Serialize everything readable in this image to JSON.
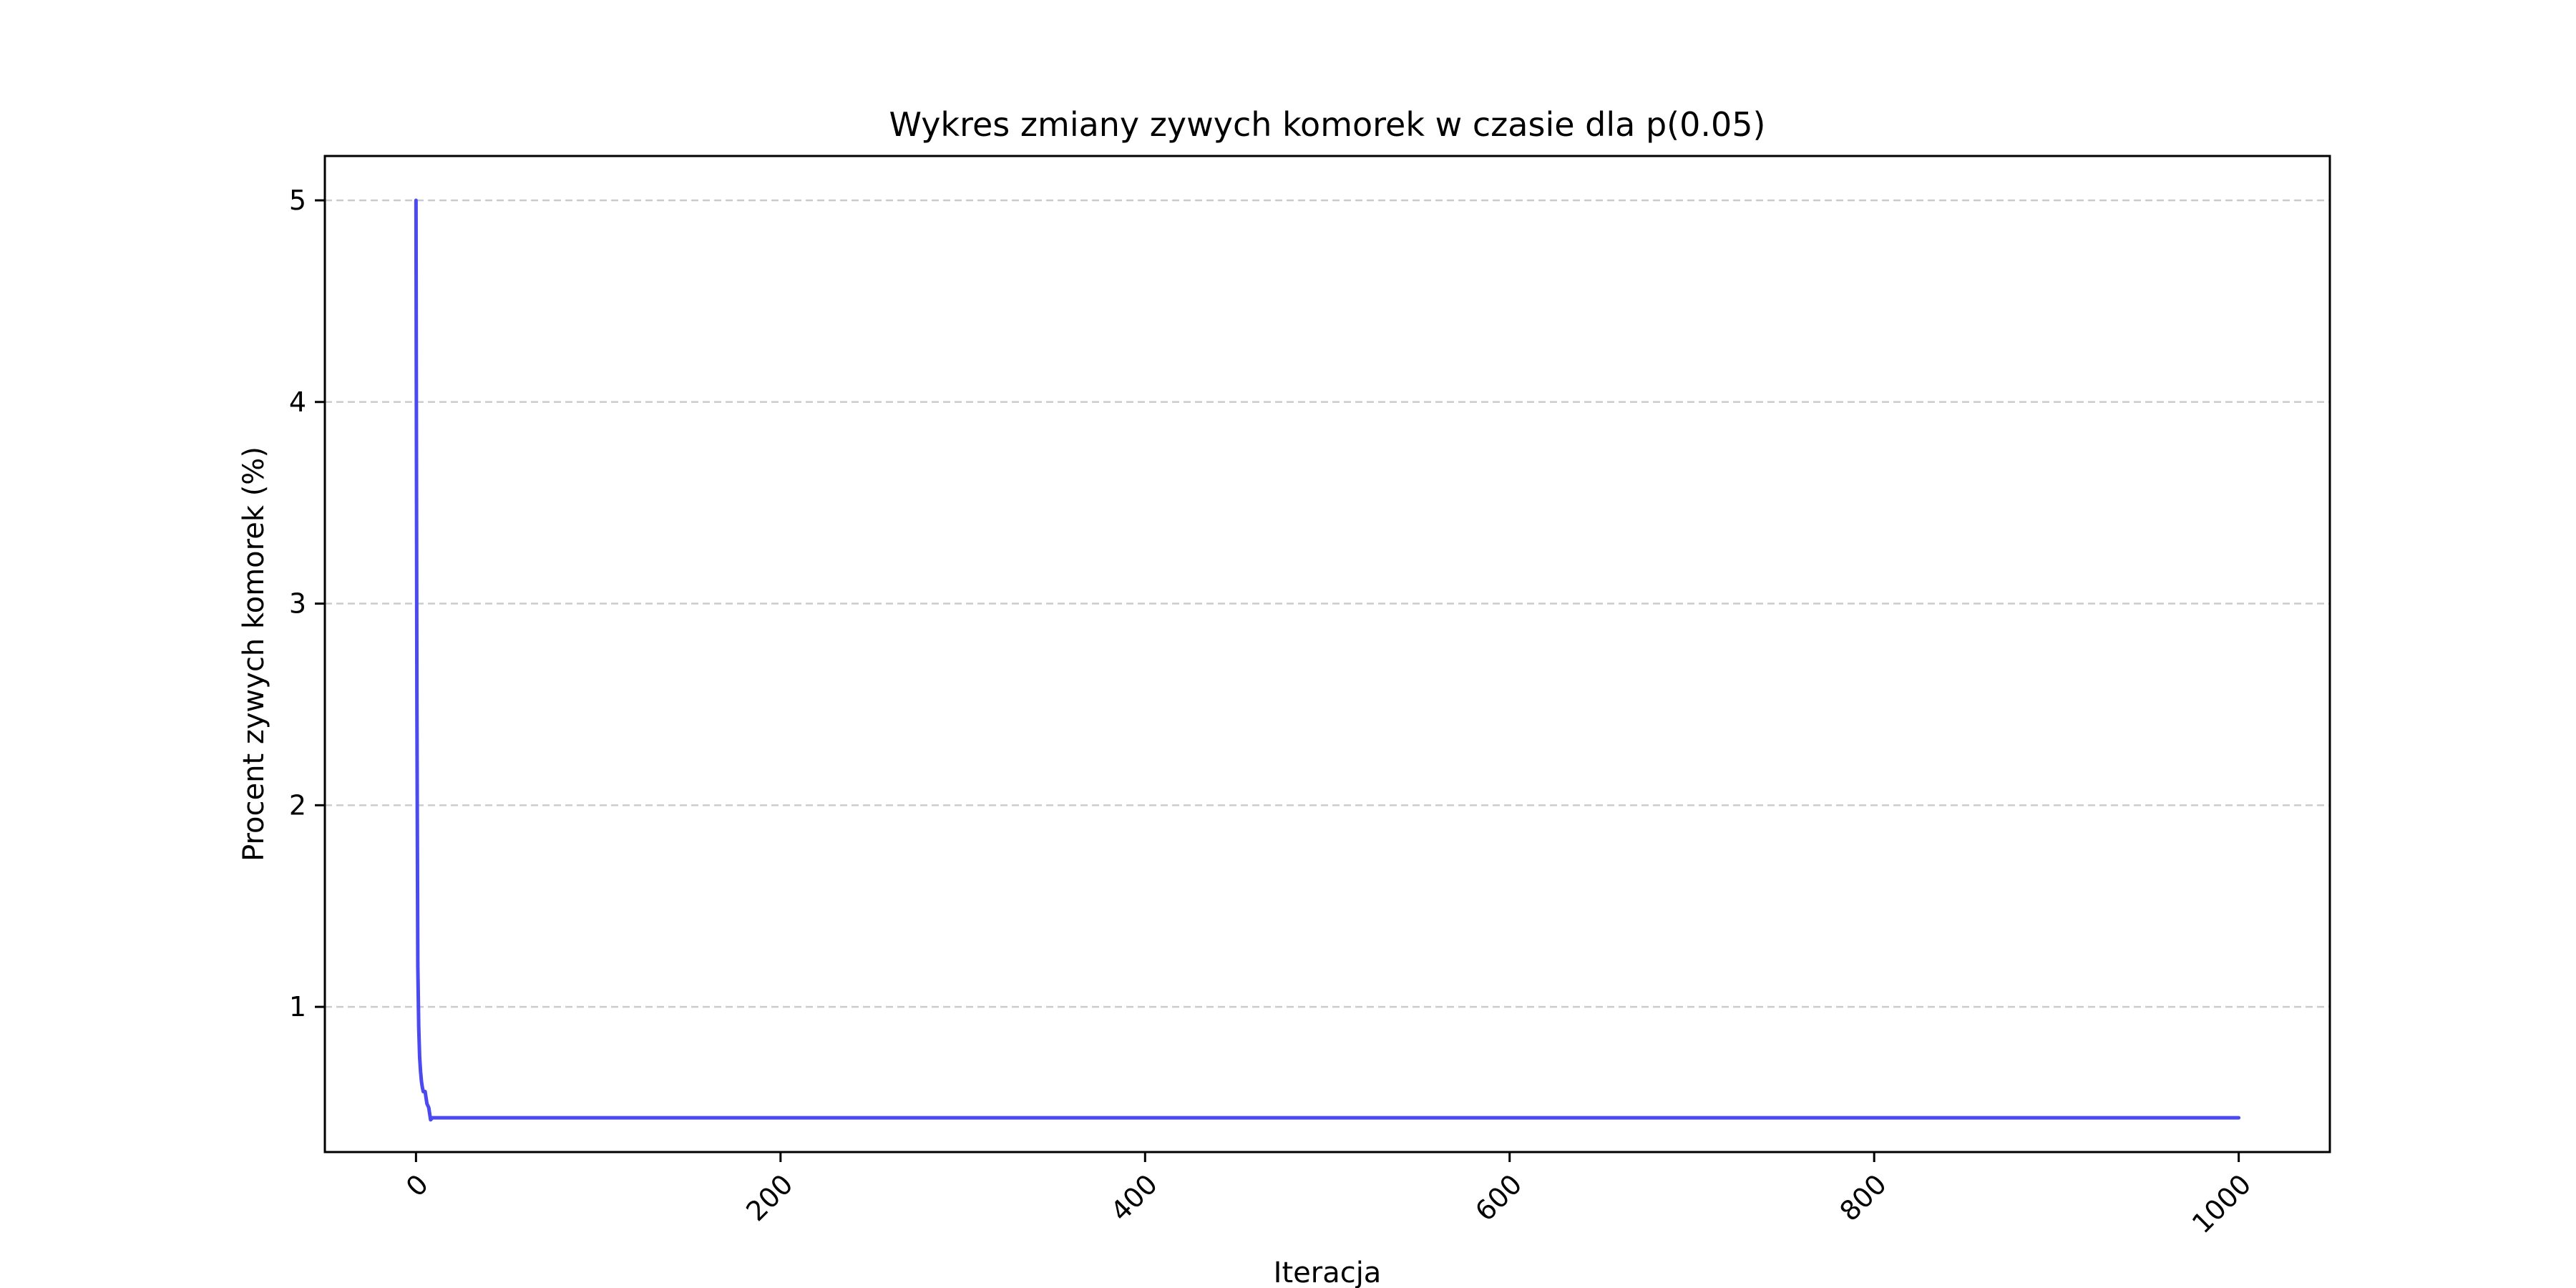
{
  "chart_data": {
    "type": "line",
    "title": "Wykres zmiany zywych komorek w czasie dla p(0.05)",
    "xlabel": "Iteracja",
    "ylabel": "Procent zywych komorek (%)",
    "xlim": [
      -50,
      1050
    ],
    "ylim": [
      0.28,
      5.22
    ],
    "x_ticks": [
      0,
      200,
      400,
      600,
      800,
      1000
    ],
    "x_tick_labels": [
      "0",
      "200",
      "400",
      "600",
      "800",
      "1000"
    ],
    "y_ticks": [
      1,
      2,
      3,
      4,
      5
    ],
    "y_tick_labels": [
      "1",
      "2",
      "3",
      "4",
      "5"
    ],
    "x_tick_rotation_deg": 45,
    "grid": "y-dashed",
    "legend": "none",
    "colors": {
      "line": "#4a4af0",
      "grid": "#cccccc",
      "axes": "#000000"
    },
    "series": [
      {
        "x": [
          0,
          0.5,
          1,
          1.5,
          2,
          2.5,
          3,
          3.5,
          4,
          5,
          6,
          7,
          8,
          9,
          10,
          20,
          50,
          100,
          200,
          300,
          400,
          500,
          600,
          700,
          800,
          900,
          1000
        ],
        "y": [
          5.0,
          2.5,
          1.2,
          0.9,
          0.75,
          0.68,
          0.63,
          0.6,
          0.58,
          0.58,
          0.52,
          0.5,
          0.44,
          0.45,
          0.45,
          0.45,
          0.45,
          0.45,
          0.45,
          0.45,
          0.45,
          0.45,
          0.45,
          0.45,
          0.45,
          0.45,
          0.45
        ]
      }
    ]
  }
}
